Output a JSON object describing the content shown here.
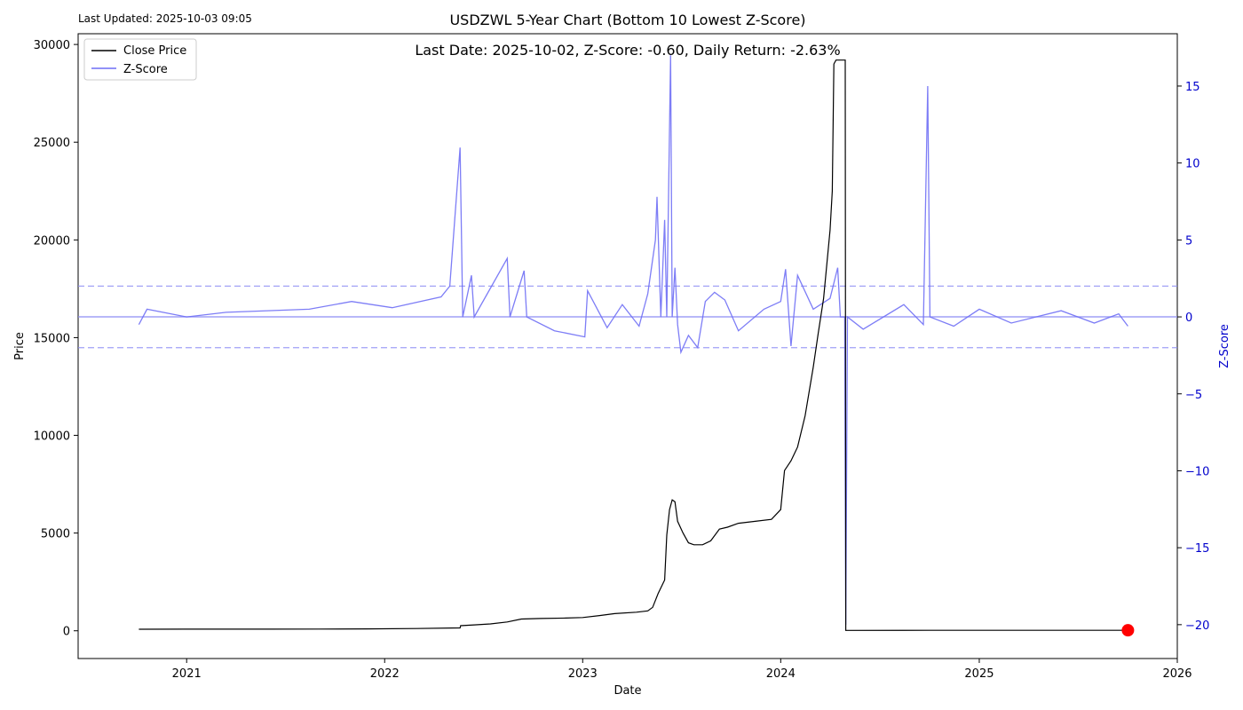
{
  "last_updated": "Last Updated: 2025-10-03 09:05",
  "chart_data": {
    "type": "line",
    "title": "USDZWL 5-Year Chart (Bottom 10 Lowest Z-Score)",
    "subtitle": "Last Date: 2025-10-02, Z-Score: -0.60, Daily Return: -2.63%",
    "xlabel": "Date",
    "ylabel": "Price",
    "y2label": "Z-Score",
    "legend": {
      "placement": "top-left",
      "entries": [
        "Close Price",
        "Z-Score"
      ]
    },
    "grid": false,
    "x_range": [
      "2020-06-15",
      "2026-01-01"
    ],
    "ylim": [
      -1420,
      30550
    ],
    "y2lim": [
      -22.2,
      18.4
    ],
    "x_ticks": [
      "2021",
      "2022",
      "2023",
      "2024",
      "2025",
      "2026"
    ],
    "y_ticks": [
      0,
      5000,
      10000,
      15000,
      20000,
      25000,
      30000
    ],
    "y2_ticks": [
      -20,
      -15,
      -10,
      -5,
      0,
      5,
      10,
      15
    ],
    "z_reference_lines": [
      2,
      0,
      -2
    ],
    "colors": {
      "price": "#000000",
      "zscore": "#6f6ff5",
      "marker": "#ff0000",
      "ref": "#8a8af5",
      "y2axis": "#0000cc"
    },
    "last_point": {
      "date": "2025-10-02",
      "price": 25
    },
    "series": [
      {
        "name": "Close Price",
        "points": [
          [
            "2020-10-05",
            80
          ],
          [
            "2021-01-01",
            82
          ],
          [
            "2021-06-01",
            85
          ],
          [
            "2021-09-01",
            88
          ],
          [
            "2021-12-01",
            95
          ],
          [
            "2022-03-01",
            115
          ],
          [
            "2022-05-20",
            145
          ],
          [
            "2022-05-21",
            260
          ],
          [
            "2022-06-15",
            300
          ],
          [
            "2022-07-15",
            350
          ],
          [
            "2022-08-15",
            450
          ],
          [
            "2022-09-10",
            600
          ],
          [
            "2022-10-15",
            630
          ],
          [
            "2022-12-01",
            650
          ],
          [
            "2023-01-01",
            680
          ],
          [
            "2023-02-01",
            780
          ],
          [
            "2023-03-01",
            880
          ],
          [
            "2023-04-10",
            950
          ],
          [
            "2023-05-01",
            1020
          ],
          [
            "2023-05-10",
            1200
          ],
          [
            "2023-05-20",
            1900
          ],
          [
            "2023-06-01",
            2600
          ],
          [
            "2023-06-05",
            4900
          ],
          [
            "2023-06-10",
            6200
          ],
          [
            "2023-06-15",
            6700
          ],
          [
            "2023-06-20",
            6600
          ],
          [
            "2023-06-25",
            5600
          ],
          [
            "2023-07-05",
            5000
          ],
          [
            "2023-07-15",
            4500
          ],
          [
            "2023-07-25",
            4400
          ],
          [
            "2023-08-10",
            4400
          ],
          [
            "2023-08-25",
            4600
          ],
          [
            "2023-09-10",
            5200
          ],
          [
            "2023-09-25",
            5300
          ],
          [
            "2023-10-15",
            5500
          ],
          [
            "2023-11-15",
            5600
          ],
          [
            "2023-12-15",
            5700
          ],
          [
            "2024-01-01",
            6200
          ],
          [
            "2024-01-08",
            8200
          ],
          [
            "2024-01-20",
            8700
          ],
          [
            "2024-02-01",
            9400
          ],
          [
            "2024-02-15",
            11000
          ],
          [
            "2024-03-01",
            13500
          ],
          [
            "2024-03-10",
            15200
          ],
          [
            "2024-03-20",
            17000
          ],
          [
            "2024-04-01",
            20500
          ],
          [
            "2024-04-05",
            22500
          ],
          [
            "2024-04-08",
            29000
          ],
          [
            "2024-04-12",
            29200
          ],
          [
            "2024-04-29",
            29200
          ],
          [
            "2024-04-30",
            20
          ],
          [
            "2024-10-01",
            25
          ],
          [
            "2025-10-02",
            25
          ]
        ]
      },
      {
        "name": "Z-Score",
        "points": [
          [
            "2020-10-05",
            -0.5
          ],
          [
            "2020-10-20",
            0.5
          ],
          [
            "2021-01-01",
            0.0
          ],
          [
            "2021-03-15",
            0.3
          ],
          [
            "2021-08-15",
            0.5
          ],
          [
            "2021-11-01",
            1.0
          ],
          [
            "2022-01-15",
            0.6
          ],
          [
            "2022-04-15",
            1.3
          ],
          [
            "2022-05-01",
            2.0
          ],
          [
            "2022-05-20",
            11.0
          ],
          [
            "2022-05-25",
            0.0
          ],
          [
            "2022-06-10",
            2.7
          ],
          [
            "2022-06-15",
            0.0
          ],
          [
            "2022-08-15",
            3.8
          ],
          [
            "2022-08-20",
            0.0
          ],
          [
            "2022-09-15",
            3.0
          ],
          [
            "2022-09-20",
            0.0
          ],
          [
            "2022-11-10",
            -0.9
          ],
          [
            "2023-01-05",
            -1.3
          ],
          [
            "2023-01-10",
            1.7
          ],
          [
            "2023-02-15",
            -0.7
          ],
          [
            "2023-03-15",
            0.8
          ],
          [
            "2023-04-15",
            -0.6
          ],
          [
            "2023-05-01",
            1.5
          ],
          [
            "2023-05-15",
            5.0
          ],
          [
            "2023-05-18",
            7.8
          ],
          [
            "2023-05-25",
            0.0
          ],
          [
            "2023-06-01",
            6.3
          ],
          [
            "2023-06-05",
            0.0
          ],
          [
            "2023-06-12",
            17.0
          ],
          [
            "2023-06-15",
            0.0
          ],
          [
            "2023-06-20",
            3.2
          ],
          [
            "2023-06-25",
            -0.5
          ],
          [
            "2023-07-01",
            -2.3
          ],
          [
            "2023-07-15",
            -1.2
          ],
          [
            "2023-08-01",
            -2.0
          ],
          [
            "2023-08-15",
            1.0
          ],
          [
            "2023-09-01",
            1.6
          ],
          [
            "2023-09-20",
            1.1
          ],
          [
            "2023-10-15",
            -0.9
          ],
          [
            "2023-12-01",
            0.5
          ],
          [
            "2024-01-01",
            1.0
          ],
          [
            "2024-01-10",
            3.1
          ],
          [
            "2024-01-20",
            -1.9
          ],
          [
            "2024-02-01",
            2.7
          ],
          [
            "2024-03-01",
            0.5
          ],
          [
            "2024-04-01",
            1.2
          ],
          [
            "2024-04-15",
            3.2
          ],
          [
            "2024-04-20",
            0.0
          ],
          [
            "2024-04-28",
            0.0
          ],
          [
            "2024-04-30",
            -20.0
          ],
          [
            "2024-05-03",
            0.0
          ],
          [
            "2024-06-01",
            -0.8
          ],
          [
            "2024-08-15",
            0.8
          ],
          [
            "2024-09-20",
            -0.5
          ],
          [
            "2024-09-28",
            15.0
          ],
          [
            "2024-10-02",
            0.0
          ],
          [
            "2024-11-15",
            -0.6
          ],
          [
            "2025-01-01",
            0.5
          ],
          [
            "2025-03-01",
            -0.4
          ],
          [
            "2025-06-01",
            0.4
          ],
          [
            "2025-08-01",
            -0.4
          ],
          [
            "2025-09-15",
            0.2
          ],
          [
            "2025-10-02",
            -0.6
          ]
        ]
      }
    ]
  }
}
